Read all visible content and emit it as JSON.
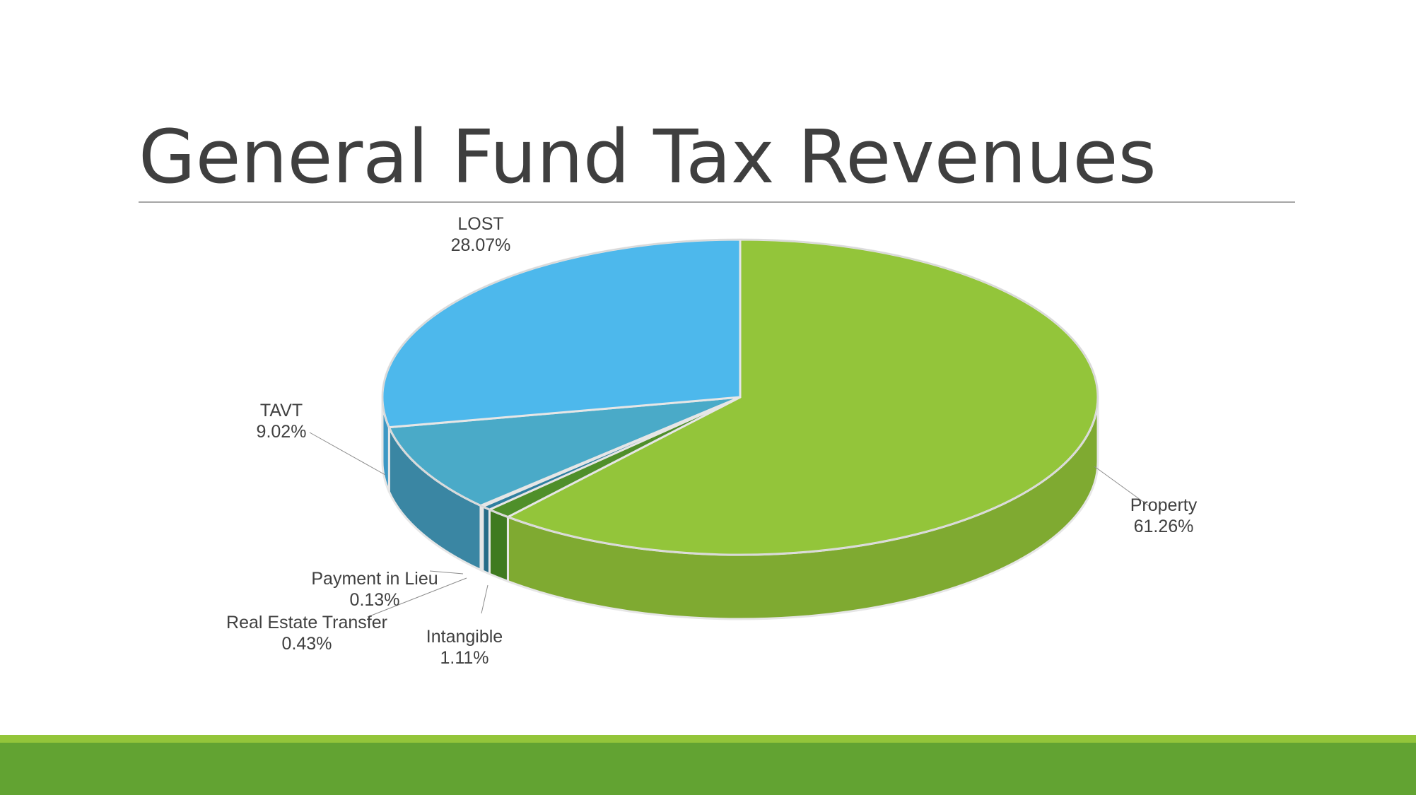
{
  "slide": {
    "title": "General Fund Tax Revenues"
  },
  "chart_data": {
    "type": "pie",
    "title": "",
    "slices": [
      {
        "label": "Property",
        "percent_label": "61.26%",
        "value": 61.26,
        "color": "#93c53a",
        "side_color": "#7faa31"
      },
      {
        "label": "Intangible",
        "percent_label": "1.11%",
        "value": 1.11,
        "color": "#4f8f2a",
        "side_color": "#3f7a20"
      },
      {
        "label": "Real Estate Transfer",
        "percent_label": "0.43%",
        "value": 0.43,
        "color": "#2f7fa0",
        "side_color": "#276c88"
      },
      {
        "label": "Payment in Lieu",
        "percent_label": "0.13%",
        "value": 0.13,
        "color": "#3a90b8",
        "side_color": "#2f7da0"
      },
      {
        "label": "TAVT",
        "percent_label": "9.02%",
        "value": 9.02,
        "color": "#4aaac8",
        "side_color": "#3a86a3"
      },
      {
        "label": "LOST",
        "percent_label": "28.07%",
        "value": 28.07,
        "color": "#4db8ec",
        "side_color": "#3d98c4"
      }
    ],
    "legend": "none",
    "style": "3d-pie"
  }
}
